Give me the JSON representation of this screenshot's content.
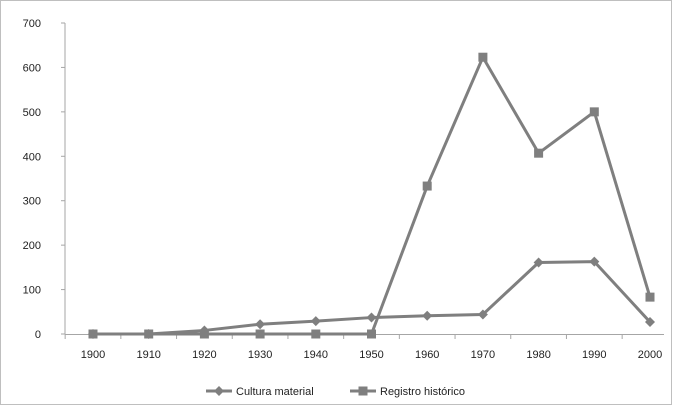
{
  "chart_data": {
    "type": "line",
    "title": "",
    "xlabel": "",
    "ylabel": "",
    "x": [
      "1900",
      "1910",
      "1920",
      "1930",
      "1940",
      "1950",
      "1960",
      "1970",
      "1980",
      "1990",
      "2000"
    ],
    "ylim": [
      0,
      700
    ],
    "yticks": [
      0,
      100,
      200,
      300,
      400,
      500,
      600,
      700
    ],
    "grid": false,
    "legend_position": "bottom",
    "series": [
      {
        "name": "Cultura material",
        "marker": "diamond",
        "color": "#7f7f7f",
        "values": [
          0,
          0,
          8,
          22,
          29,
          37,
          41,
          44,
          161,
          163,
          27
        ]
      },
      {
        "name": "Registro histórico",
        "marker": "square",
        "color": "#7f7f7f",
        "values": [
          0,
          0,
          0,
          0,
          0,
          0,
          333,
          623,
          407,
          500,
          83
        ]
      }
    ]
  }
}
